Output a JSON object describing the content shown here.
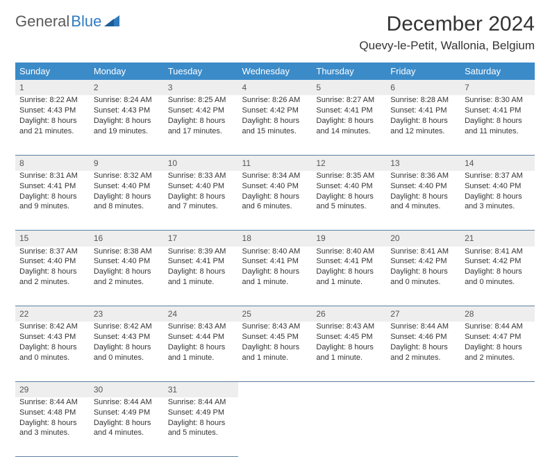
{
  "logo": {
    "word1": "General",
    "word2": "Blue"
  },
  "title": "December 2024",
  "location": "Quevy-le-Petit, Wallonia, Belgium",
  "colors": {
    "header_bg": "#3b8bc9",
    "header_text": "#ffffff",
    "daynum_bg": "#eeeeee",
    "border": "#5a7fa0",
    "logo_gray": "#5a5a5a",
    "logo_blue": "#2f7bbf",
    "text": "#333333"
  },
  "weekdays": [
    "Sunday",
    "Monday",
    "Tuesday",
    "Wednesday",
    "Thursday",
    "Friday",
    "Saturday"
  ],
  "weeks": [
    [
      {
        "n": "1",
        "sr": "Sunrise: 8:22 AM",
        "ss": "Sunset: 4:43 PM",
        "dl": "Daylight: 8 hours and 21 minutes."
      },
      {
        "n": "2",
        "sr": "Sunrise: 8:24 AM",
        "ss": "Sunset: 4:43 PM",
        "dl": "Daylight: 8 hours and 19 minutes."
      },
      {
        "n": "3",
        "sr": "Sunrise: 8:25 AM",
        "ss": "Sunset: 4:42 PM",
        "dl": "Daylight: 8 hours and 17 minutes."
      },
      {
        "n": "4",
        "sr": "Sunrise: 8:26 AM",
        "ss": "Sunset: 4:42 PM",
        "dl": "Daylight: 8 hours and 15 minutes."
      },
      {
        "n": "5",
        "sr": "Sunrise: 8:27 AM",
        "ss": "Sunset: 4:41 PM",
        "dl": "Daylight: 8 hours and 14 minutes."
      },
      {
        "n": "6",
        "sr": "Sunrise: 8:28 AM",
        "ss": "Sunset: 4:41 PM",
        "dl": "Daylight: 8 hours and 12 minutes."
      },
      {
        "n": "7",
        "sr": "Sunrise: 8:30 AM",
        "ss": "Sunset: 4:41 PM",
        "dl": "Daylight: 8 hours and 11 minutes."
      }
    ],
    [
      {
        "n": "8",
        "sr": "Sunrise: 8:31 AM",
        "ss": "Sunset: 4:41 PM",
        "dl": "Daylight: 8 hours and 9 minutes."
      },
      {
        "n": "9",
        "sr": "Sunrise: 8:32 AM",
        "ss": "Sunset: 4:40 PM",
        "dl": "Daylight: 8 hours and 8 minutes."
      },
      {
        "n": "10",
        "sr": "Sunrise: 8:33 AM",
        "ss": "Sunset: 4:40 PM",
        "dl": "Daylight: 8 hours and 7 minutes."
      },
      {
        "n": "11",
        "sr": "Sunrise: 8:34 AM",
        "ss": "Sunset: 4:40 PM",
        "dl": "Daylight: 8 hours and 6 minutes."
      },
      {
        "n": "12",
        "sr": "Sunrise: 8:35 AM",
        "ss": "Sunset: 4:40 PM",
        "dl": "Daylight: 8 hours and 5 minutes."
      },
      {
        "n": "13",
        "sr": "Sunrise: 8:36 AM",
        "ss": "Sunset: 4:40 PM",
        "dl": "Daylight: 8 hours and 4 minutes."
      },
      {
        "n": "14",
        "sr": "Sunrise: 8:37 AM",
        "ss": "Sunset: 4:40 PM",
        "dl": "Daylight: 8 hours and 3 minutes."
      }
    ],
    [
      {
        "n": "15",
        "sr": "Sunrise: 8:37 AM",
        "ss": "Sunset: 4:40 PM",
        "dl": "Daylight: 8 hours and 2 minutes."
      },
      {
        "n": "16",
        "sr": "Sunrise: 8:38 AM",
        "ss": "Sunset: 4:40 PM",
        "dl": "Daylight: 8 hours and 2 minutes."
      },
      {
        "n": "17",
        "sr": "Sunrise: 8:39 AM",
        "ss": "Sunset: 4:41 PM",
        "dl": "Daylight: 8 hours and 1 minute."
      },
      {
        "n": "18",
        "sr": "Sunrise: 8:40 AM",
        "ss": "Sunset: 4:41 PM",
        "dl": "Daylight: 8 hours and 1 minute."
      },
      {
        "n": "19",
        "sr": "Sunrise: 8:40 AM",
        "ss": "Sunset: 4:41 PM",
        "dl": "Daylight: 8 hours and 1 minute."
      },
      {
        "n": "20",
        "sr": "Sunrise: 8:41 AM",
        "ss": "Sunset: 4:42 PM",
        "dl": "Daylight: 8 hours and 0 minutes."
      },
      {
        "n": "21",
        "sr": "Sunrise: 8:41 AM",
        "ss": "Sunset: 4:42 PM",
        "dl": "Daylight: 8 hours and 0 minutes."
      }
    ],
    [
      {
        "n": "22",
        "sr": "Sunrise: 8:42 AM",
        "ss": "Sunset: 4:43 PM",
        "dl": "Daylight: 8 hours and 0 minutes."
      },
      {
        "n": "23",
        "sr": "Sunrise: 8:42 AM",
        "ss": "Sunset: 4:43 PM",
        "dl": "Daylight: 8 hours and 0 minutes."
      },
      {
        "n": "24",
        "sr": "Sunrise: 8:43 AM",
        "ss": "Sunset: 4:44 PM",
        "dl": "Daylight: 8 hours and 1 minute."
      },
      {
        "n": "25",
        "sr": "Sunrise: 8:43 AM",
        "ss": "Sunset: 4:45 PM",
        "dl": "Daylight: 8 hours and 1 minute."
      },
      {
        "n": "26",
        "sr": "Sunrise: 8:43 AM",
        "ss": "Sunset: 4:45 PM",
        "dl": "Daylight: 8 hours and 1 minute."
      },
      {
        "n": "27",
        "sr": "Sunrise: 8:44 AM",
        "ss": "Sunset: 4:46 PM",
        "dl": "Daylight: 8 hours and 2 minutes."
      },
      {
        "n": "28",
        "sr": "Sunrise: 8:44 AM",
        "ss": "Sunset: 4:47 PM",
        "dl": "Daylight: 8 hours and 2 minutes."
      }
    ],
    [
      {
        "n": "29",
        "sr": "Sunrise: 8:44 AM",
        "ss": "Sunset: 4:48 PM",
        "dl": "Daylight: 8 hours and 3 minutes."
      },
      {
        "n": "30",
        "sr": "Sunrise: 8:44 AM",
        "ss": "Sunset: 4:49 PM",
        "dl": "Daylight: 8 hours and 4 minutes."
      },
      {
        "n": "31",
        "sr": "Sunrise: 8:44 AM",
        "ss": "Sunset: 4:49 PM",
        "dl": "Daylight: 8 hours and 5 minutes."
      },
      null,
      null,
      null,
      null
    ]
  ]
}
